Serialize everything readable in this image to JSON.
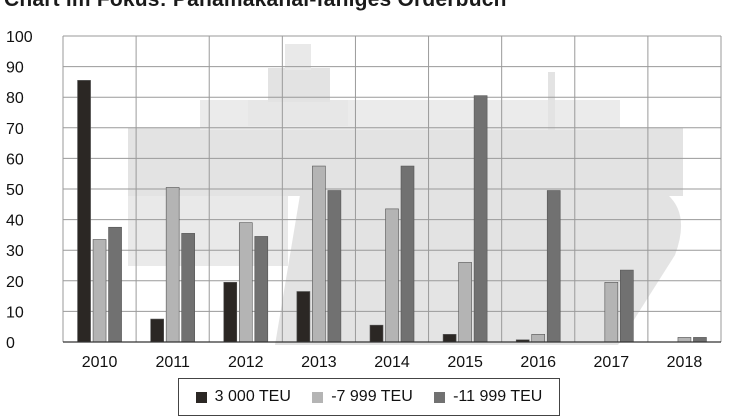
{
  "chart_data": {
    "type": "bar",
    "title": "Chart im Fokus: Panamakanal-fähiges Orderbuch",
    "categories": [
      "2010",
      "2011",
      "2012",
      "2013",
      "2014",
      "2015",
      "2016",
      "2017",
      "2018"
    ],
    "y_ticks": [
      "0",
      "10",
      "20",
      "30",
      "40",
      "50",
      "60",
      "70",
      "80",
      "90",
      "100"
    ],
    "ylim": [
      0,
      100
    ],
    "grid": true,
    "legend_position": "bottom",
    "series": [
      {
        "name": "3 000 TEU",
        "color": "#2b2724",
        "values": [
          85.5,
          7.5,
          19.5,
          16.5,
          5.5,
          2.5,
          0.7,
          0,
          0
        ]
      },
      {
        "name": "-7 999 TEU",
        "color": "#b4b4b4",
        "values": [
          33.5,
          50.5,
          39,
          57.5,
          43.5,
          26,
          2.5,
          19.5,
          1.5
        ]
      },
      {
        "name": "-11 999 TEU",
        "color": "#717171",
        "values": [
          37.5,
          35.5,
          34.5,
          49.5,
          57.5,
          80.5,
          49.5,
          23.5,
          1.5
        ]
      }
    ]
  }
}
